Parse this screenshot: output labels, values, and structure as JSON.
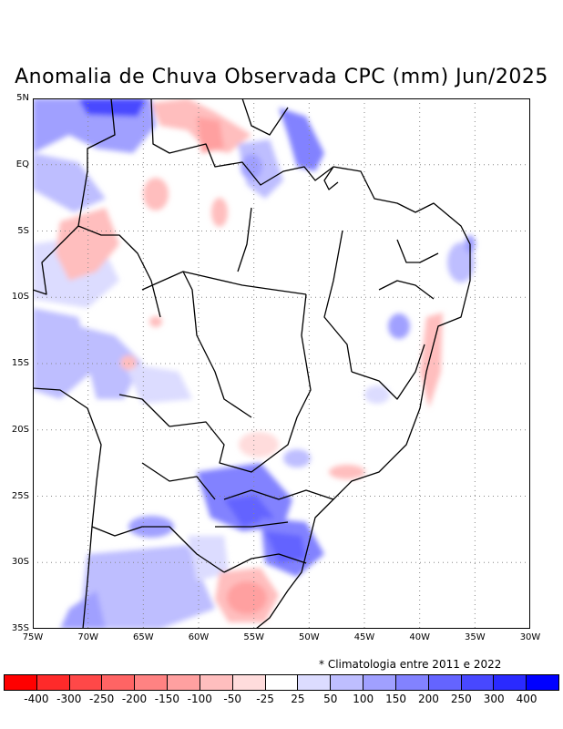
{
  "title": "Anomalia de Chuva Observada CPC (mm) Jun/2025",
  "note": "* Climatologia entre 2011 e 2022",
  "map": {
    "lon_range": [
      -75,
      -30
    ],
    "lat_range": [
      -35,
      5
    ],
    "lat_labels": [
      "5N",
      "EQ",
      "5S",
      "10S",
      "15S",
      "20S",
      "25S",
      "30S",
      "35S"
    ],
    "lon_labels": [
      "75W",
      "70W",
      "65W",
      "60W",
      "55W",
      "50W",
      "45W",
      "40W",
      "35W",
      "30W"
    ],
    "grid": true
  },
  "legend": {
    "colors": [
      "#ff0000",
      "#ff2a2a",
      "#ff4848",
      "#ff6464",
      "#ff8282",
      "#ffa0a0",
      "#ffbebe",
      "#ffdcdc",
      "#ffffff",
      "#dcdcff",
      "#bebeff",
      "#a0a0ff",
      "#8282ff",
      "#6464ff",
      "#4848ff",
      "#2a2aff",
      "#0000ff"
    ],
    "labels": [
      "-400",
      "-300",
      "-250",
      "-200",
      "-150",
      "-100",
      "-50",
      "-25",
      "25",
      "50",
      "100",
      "150",
      "200",
      "250",
      "300",
      "400"
    ]
  }
}
